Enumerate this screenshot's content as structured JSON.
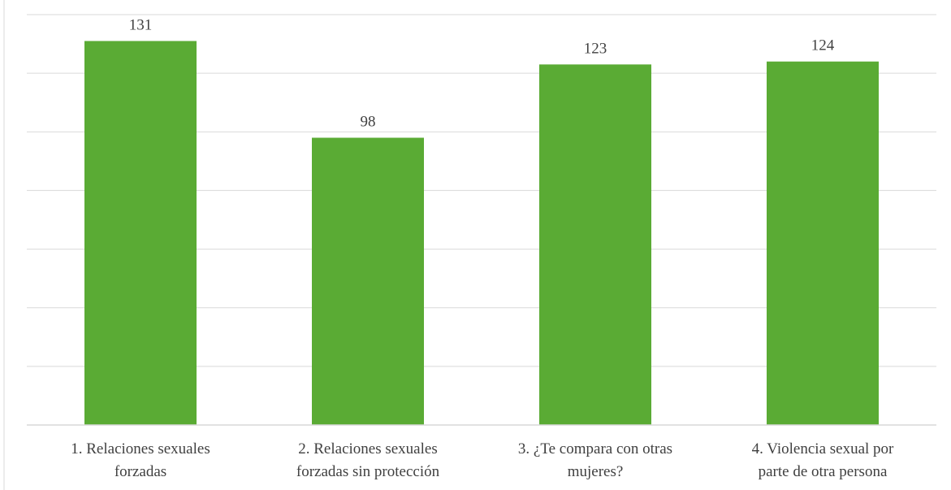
{
  "chart_data": {
    "type": "bar",
    "categories": [
      [
        "1. Relaciones sexuales",
        "forzadas"
      ],
      [
        "2. Relaciones sexuales",
        "forzadas sin protección"
      ],
      [
        "3. ¿Te compara con otras",
        "mujeres?"
      ],
      [
        "4. Violencia sexual por",
        "parte de otra persona"
      ]
    ],
    "values": [
      131,
      98,
      123,
      124
    ],
    "data_labels": [
      "131",
      "98",
      "123",
      "124"
    ],
    "ylim": [
      0,
      140
    ],
    "grid": true,
    "bar_color": "#5aab34",
    "grid_color": "#d9d9d9",
    "title": "",
    "xlabel": "",
    "ylabel": ""
  }
}
